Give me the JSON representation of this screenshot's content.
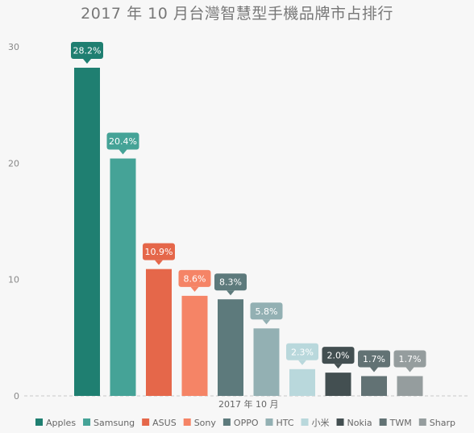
{
  "chart_data": {
    "type": "bar",
    "title": "2017 年 10 月台灣智慧型手機品牌市占排行",
    "categories": [
      "2017 年 10 月"
    ],
    "ylim": [
      0,
      30
    ],
    "yticks": [
      "0",
      "10",
      "20",
      "30"
    ],
    "grid": false,
    "legend_position": "bottom",
    "series": [
      {
        "name": "Apples",
        "value": 28.2,
        "label": "28.2%",
        "color": "#1f7f71"
      },
      {
        "name": "Samsung",
        "value": 20.4,
        "label": "20.4%",
        "color": "#45a397"
      },
      {
        "name": "ASUS",
        "value": 10.9,
        "label": "10.9%",
        "color": "#e5674a"
      },
      {
        "name": "Sony",
        "value": 8.6,
        "label": "8.6%",
        "color": "#f58466"
      },
      {
        "name": "OPPO",
        "value": 8.3,
        "label": "8.3%",
        "color": "#5d7a7c"
      },
      {
        "name": "HTC",
        "value": 5.8,
        "label": "5.8%",
        "color": "#93b0b3"
      },
      {
        "name": "小米",
        "value": 2.3,
        "label": "2.3%",
        "color": "#b9d8dc"
      },
      {
        "name": "Nokia",
        "value": 2.0,
        "label": "2.0%",
        "color": "#434f51"
      },
      {
        "name": "TWM",
        "value": 1.7,
        "label": "1.7%",
        "color": "#627274"
      },
      {
        "name": "Sharp",
        "value": 1.7,
        "label": "1.7%",
        "color": "#959d9e"
      }
    ]
  }
}
